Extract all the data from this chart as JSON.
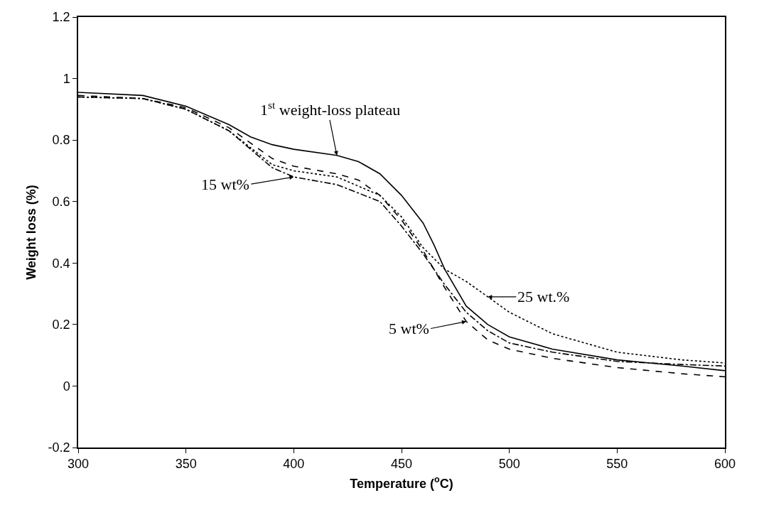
{
  "chart_data": {
    "type": "line",
    "xlabel": "Temperature ($^{o}$C)",
    "ylabel": "Weight loss (%)",
    "xlim": [
      300,
      600
    ],
    "xticks": [
      300,
      350,
      400,
      450,
      500,
      550,
      600
    ],
    "ylim": [
      -0.2,
      1.2
    ],
    "yticks": [
      -0.2,
      0,
      0.2,
      0.4,
      0.6,
      0.8,
      1,
      1.2
    ],
    "grid": false,
    "marker": "none",
    "series": [
      {
        "color": "#000000",
        "line_style": "solid",
        "x": [
          300,
          330,
          350,
          370,
          380,
          390,
          400,
          420,
          430,
          440,
          450,
          460,
          465,
          470,
          480,
          490,
          500,
          520,
          550,
          580,
          600
        ],
        "values": [
          0.955,
          0.945,
          0.91,
          0.85,
          0.81,
          0.785,
          0.77,
          0.75,
          0.73,
          0.69,
          0.62,
          0.53,
          0.46,
          0.38,
          0.26,
          0.2,
          0.16,
          0.12,
          0.085,
          0.065,
          0.05
        ]
      },
      {
        "color": "#000000",
        "line_style": "dashed",
        "x": [
          300,
          330,
          350,
          370,
          390,
          400,
          420,
          430,
          440,
          450,
          460,
          470,
          480,
          490,
          500,
          520,
          550,
          580,
          600
        ],
        "values": [
          0.945,
          0.935,
          0.905,
          0.84,
          0.74,
          0.715,
          0.69,
          0.67,
          0.62,
          0.54,
          0.44,
          0.32,
          0.21,
          0.15,
          0.12,
          0.09,
          0.06,
          0.04,
          0.03
        ]
      },
      {
        "color": "#000000",
        "line_style": "dashdot",
        "x": [
          300,
          330,
          350,
          370,
          390,
          400,
          420,
          440,
          450,
          460,
          470,
          480,
          490,
          500,
          520,
          550,
          580,
          600
        ],
        "values": [
          0.94,
          0.935,
          0.9,
          0.83,
          0.71,
          0.68,
          0.655,
          0.6,
          0.52,
          0.43,
          0.33,
          0.24,
          0.18,
          0.14,
          0.11,
          0.08,
          0.07,
          0.065
        ]
      },
      {
        "color": "#000000",
        "line_style": "dotted",
        "x": [
          300,
          330,
          350,
          370,
          390,
          400,
          420,
          440,
          450,
          460,
          470,
          480,
          490,
          500,
          520,
          550,
          580,
          600
        ],
        "values": [
          0.94,
          0.935,
          0.9,
          0.83,
          0.72,
          0.7,
          0.68,
          0.62,
          0.55,
          0.45,
          0.38,
          0.34,
          0.29,
          0.24,
          0.17,
          0.11,
          0.085,
          0.075
        ]
      }
    ],
    "annotations": [
      {
        "text": "1$^{st}$ weight-loss plateau",
        "x": 420,
        "y": 0.75
      },
      {
        "text": "15 wt%",
        "x": 400,
        "y": 0.68
      },
      {
        "text": "25 wt.%",
        "x": 490,
        "y": 0.29
      },
      {
        "text": "5 wt%",
        "x": 480,
        "y": 0.21
      }
    ]
  }
}
